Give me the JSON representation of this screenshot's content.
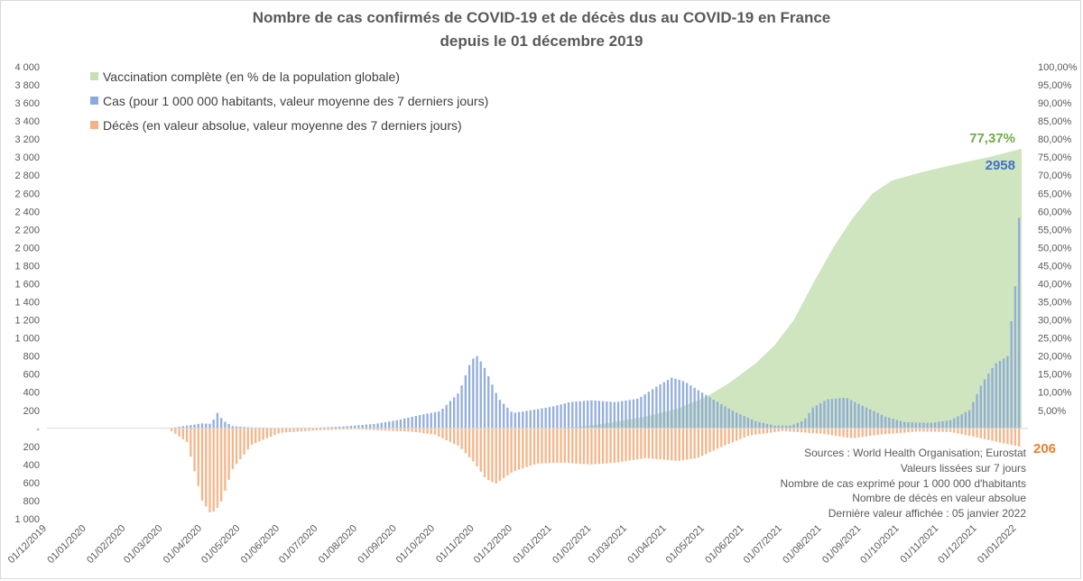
{
  "chart_data": {
    "type": "area",
    "title": "Nombre de cas confirmés de COVID-19 et de décès dus au COVID-19 en France",
    "subtitle": "depuis le 01 décembre 2019",
    "x_ticks": [
      "01/12/2019",
      "01/01/2020",
      "01/02/2020",
      "01/03/2020",
      "01/04/2020",
      "01/05/2020",
      "01/06/2020",
      "01/07/2020",
      "01/08/2020",
      "01/09/2020",
      "01/10/2020",
      "01/11/2020",
      "01/12/2020",
      "01/01/2021",
      "01/02/2021",
      "01/03/2021",
      "01/04/2021",
      "01/05/2021",
      "01/06/2021",
      "01/07/2021",
      "01/08/2021",
      "01/09/2021",
      "01/10/2021",
      "01/11/2021",
      "01/12/2021",
      "01/01/2022"
    ],
    "x_range": [
      "2019-12-01",
      "2022-01-10"
    ],
    "y_left_ticks": [
      "4 000",
      "3 800",
      "3 600",
      "3 400",
      "3 200",
      "3 000",
      "2 800",
      "2 600",
      "2 400",
      "2 200",
      "2 000",
      "1 800",
      "1 600",
      "1 400",
      "1 200",
      "1 000",
      "800",
      "600",
      "400",
      "200",
      "-",
      "200",
      "400",
      "600",
      "800",
      "1 000"
    ],
    "y_left_range": [
      -1000,
      4000
    ],
    "y_right_ticks": [
      "100,00%",
      "95,00%",
      "90,00%",
      "85,00%",
      "80,00%",
      "75,00%",
      "70,00%",
      "65,00%",
      "60,00%",
      "55,00%",
      "50,00%",
      "45,00%",
      "40,00%",
      "35,00%",
      "30,00%",
      "25,00%",
      "20,00%",
      "15,00%",
      "10,00%",
      "5,00%"
    ],
    "y_right_range": [
      -25,
      100
    ],
    "grid": false,
    "legend_position": "top-left",
    "series": [
      {
        "name": "Vaccination complète (en % de la population globale)",
        "color": "#c6e0b4",
        "axis": "right",
        "points": [
          [
            "2020-12-27",
            0
          ],
          [
            "2021-01-20",
            0.3
          ],
          [
            "2021-02-15",
            1.5
          ],
          [
            "2021-03-15",
            3.2
          ],
          [
            "2021-04-10",
            5.5
          ],
          [
            "2021-05-01",
            8.5
          ],
          [
            "2021-05-20",
            12.5
          ],
          [
            "2021-06-10",
            18
          ],
          [
            "2021-06-25",
            23
          ],
          [
            "2021-07-10",
            30
          ],
          [
            "2021-07-25",
            40
          ],
          [
            "2021-08-10",
            50
          ],
          [
            "2021-08-25",
            58
          ],
          [
            "2021-09-10",
            65
          ],
          [
            "2021-09-25",
            68.5
          ],
          [
            "2021-10-15",
            70.5
          ],
          [
            "2021-11-01",
            72
          ],
          [
            "2021-11-20",
            73.5
          ],
          [
            "2021-12-10",
            75
          ],
          [
            "2022-01-05",
            77.37
          ]
        ]
      },
      {
        "name": "Cas (pour 1 000 000 habitants, valeur moyenne des 7 derniers jours)",
        "color": "#8eaadb",
        "axis": "left",
        "points": [
          [
            "2020-02-25",
            0
          ],
          [
            "2020-03-08",
            5
          ],
          [
            "2020-03-20",
            30
          ],
          [
            "2020-04-01",
            55
          ],
          [
            "2020-04-08",
            50
          ],
          [
            "2020-04-13",
            170
          ],
          [
            "2020-04-18",
            80
          ],
          [
            "2020-04-25",
            25
          ],
          [
            "2020-05-10",
            10
          ],
          [
            "2020-06-01",
            5
          ],
          [
            "2020-07-01",
            8
          ],
          [
            "2020-07-20",
            20
          ],
          [
            "2020-08-15",
            50
          ],
          [
            "2020-09-01",
            90
          ],
          [
            "2020-09-20",
            150
          ],
          [
            "2020-10-05",
            190
          ],
          [
            "2020-10-20",
            400
          ],
          [
            "2020-10-28",
            700
          ],
          [
            "2020-11-02",
            820
          ],
          [
            "2020-11-08",
            700
          ],
          [
            "2020-11-20",
            330
          ],
          [
            "2020-12-01",
            170
          ],
          [
            "2020-12-15",
            200
          ],
          [
            "2021-01-01",
            240
          ],
          [
            "2021-01-15",
            290
          ],
          [
            "2021-02-01",
            310
          ],
          [
            "2021-02-20",
            290
          ],
          [
            "2021-03-10",
            330
          ],
          [
            "2021-03-25",
            470
          ],
          [
            "2021-04-05",
            560
          ],
          [
            "2021-04-15",
            520
          ],
          [
            "2021-04-25",
            430
          ],
          [
            "2021-05-10",
            300
          ],
          [
            "2021-05-25",
            180
          ],
          [
            "2021-06-10",
            80
          ],
          [
            "2021-06-25",
            30
          ],
          [
            "2021-07-08",
            30
          ],
          [
            "2021-07-18",
            90
          ],
          [
            "2021-07-25",
            230
          ],
          [
            "2021-08-05",
            320
          ],
          [
            "2021-08-20",
            340
          ],
          [
            "2021-09-05",
            230
          ],
          [
            "2021-09-20",
            130
          ],
          [
            "2021-10-05",
            70
          ],
          [
            "2021-10-25",
            60
          ],
          [
            "2021-11-10",
            90
          ],
          [
            "2021-11-25",
            200
          ],
          [
            "2021-12-05",
            500
          ],
          [
            "2021-12-15",
            710
          ],
          [
            "2021-12-25",
            800
          ],
          [
            "2022-01-01",
            1700
          ],
          [
            "2022-01-05",
            2958
          ]
        ]
      },
      {
        "name": "Décès (en valeur absolue, valeur moyenne des 7 derniers jours)",
        "color": "#f4b183",
        "axis": "left",
        "points": [
          [
            "2020-03-05",
            0
          ],
          [
            "2020-03-20",
            -150
          ],
          [
            "2020-04-01",
            -800
          ],
          [
            "2020-04-08",
            -950
          ],
          [
            "2020-04-15",
            -850
          ],
          [
            "2020-04-25",
            -450
          ],
          [
            "2020-05-10",
            -180
          ],
          [
            "2020-06-01",
            -50
          ],
          [
            "2020-07-01",
            -20
          ],
          [
            "2020-08-01",
            -10
          ],
          [
            "2020-09-15",
            -40
          ],
          [
            "2020-10-01",
            -70
          ],
          [
            "2020-10-20",
            -200
          ],
          [
            "2020-11-01",
            -380
          ],
          [
            "2020-11-10",
            -560
          ],
          [
            "2020-11-18",
            -610
          ],
          [
            "2020-12-01",
            -480
          ],
          [
            "2020-12-20",
            -390
          ],
          [
            "2021-01-10",
            -380
          ],
          [
            "2021-02-01",
            -400
          ],
          [
            "2021-02-20",
            -380
          ],
          [
            "2021-03-15",
            -330
          ],
          [
            "2021-04-10",
            -360
          ],
          [
            "2021-04-25",
            -330
          ],
          [
            "2021-05-15",
            -200
          ],
          [
            "2021-06-05",
            -80
          ],
          [
            "2021-07-01",
            -30
          ],
          [
            "2021-08-01",
            -60
          ],
          [
            "2021-08-25",
            -110
          ],
          [
            "2021-09-15",
            -70
          ],
          [
            "2021-10-15",
            -35
          ],
          [
            "2021-11-10",
            -40
          ],
          [
            "2021-12-01",
            -100
          ],
          [
            "2021-12-20",
            -160
          ],
          [
            "2022-01-05",
            -206
          ]
        ]
      }
    ],
    "annotations": {
      "last_vacc": "77,37%",
      "last_cases": "2958",
      "last_deaths": "206"
    },
    "sources": [
      "Sources : World Health Organisation; Eurostat",
      "Valeurs lissées sur 7 jours",
      "Nombre de cas exprimé pour 1 000 000 d'habitants",
      "Nombre de décès en valeur absolue",
      "Dernière valeur affichée : 05 janvier 2022"
    ]
  }
}
